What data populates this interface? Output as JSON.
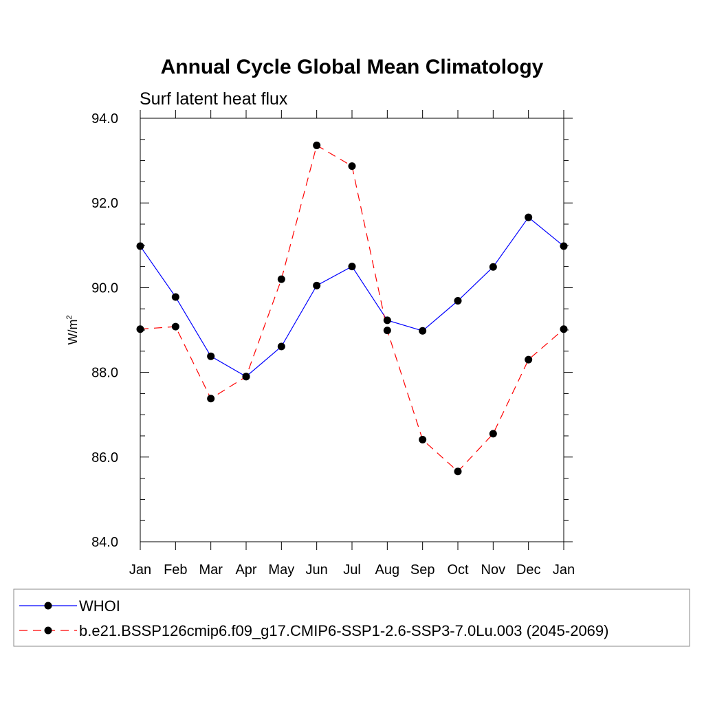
{
  "chart_data": {
    "type": "line",
    "title": "Annual Cycle Global Mean Climatology",
    "subtitle": "Surf latent heat flux",
    "ylabel_main": "W/m",
    "ylabel_sup": "2",
    "xlabel": "",
    "ylim": [
      84.0,
      94.0
    ],
    "y_ticks": [
      "84.0",
      "86.0",
      "88.0",
      "90.0",
      "92.0",
      "94.0"
    ],
    "categories": [
      "Jan",
      "Feb",
      "Mar",
      "Apr",
      "May",
      "Jun",
      "Jul",
      "Aug",
      "Sep",
      "Oct",
      "Nov",
      "Dec",
      "Jan"
    ],
    "grid": false,
    "legend_position": "bottom",
    "series": [
      {
        "name": "WHOI",
        "color": "#0000ff",
        "dashed": false,
        "values": [
          90.98,
          89.78,
          88.38,
          87.9,
          88.61,
          90.05,
          90.5,
          89.23,
          88.98,
          89.69,
          90.49,
          91.66,
          90.98
        ]
      },
      {
        "name": "b.e21.BSSP126cmip6.f09_g17.CMIP6-SSP1-2.6-SSP3-7.0Lu.003 (2045-2069)",
        "color": "#ff0000",
        "dashed": true,
        "values": [
          89.02,
          89.08,
          87.38,
          87.9,
          90.2,
          93.36,
          92.87,
          88.99,
          86.41,
          85.66,
          86.55,
          88.3,
          89.02
        ]
      }
    ]
  }
}
